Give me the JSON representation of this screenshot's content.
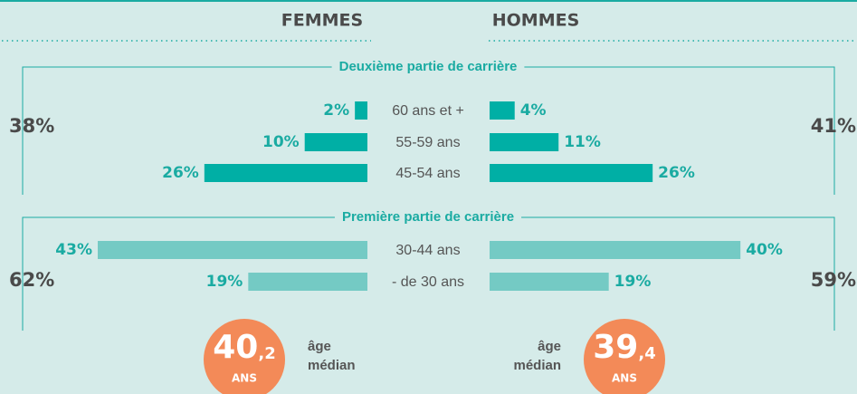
{
  "header": {
    "left": "FEMMES",
    "right": "HOMMES"
  },
  "chart_data": {
    "type": "butterfly",
    "groups": [
      {
        "title": "Deuxième partie de carrière",
        "color": "#00afa5",
        "total_left": {
          "value": 38,
          "label": "38%"
        },
        "total_right": {
          "value": 41,
          "label": "41%"
        },
        "categories": [
          "60 ans et +",
          "55-59 ans",
          "45-54 ans"
        ],
        "left": [
          2,
          10,
          26
        ],
        "left_labels": [
          "2%",
          "10%",
          "26%"
        ],
        "right": [
          4,
          11,
          26
        ],
        "right_labels": [
          "4%",
          "11%",
          "26%"
        ]
      },
      {
        "title": "Première partie de carrière",
        "color": "#74cac4",
        "total_left": {
          "value": 62,
          "label": "62%"
        },
        "total_right": {
          "value": 59,
          "label": "59%"
        },
        "categories": [
          "30-44 ans",
          "- de 30 ans"
        ],
        "left": [
          43,
          19
        ],
        "left_labels": [
          "43%",
          "19%"
        ],
        "right": [
          40,
          19
        ],
        "right_labels": [
          "40%",
          "19%"
        ]
      }
    ]
  },
  "median": [
    {
      "value": 40.2,
      "label": "40,2",
      "unit": "ANS",
      "caption": [
        "âge",
        "médian"
      ]
    },
    {
      "value": 39.4,
      "label": "39,4",
      "unit": "ANS",
      "caption": [
        "âge",
        "médian"
      ]
    }
  ]
}
